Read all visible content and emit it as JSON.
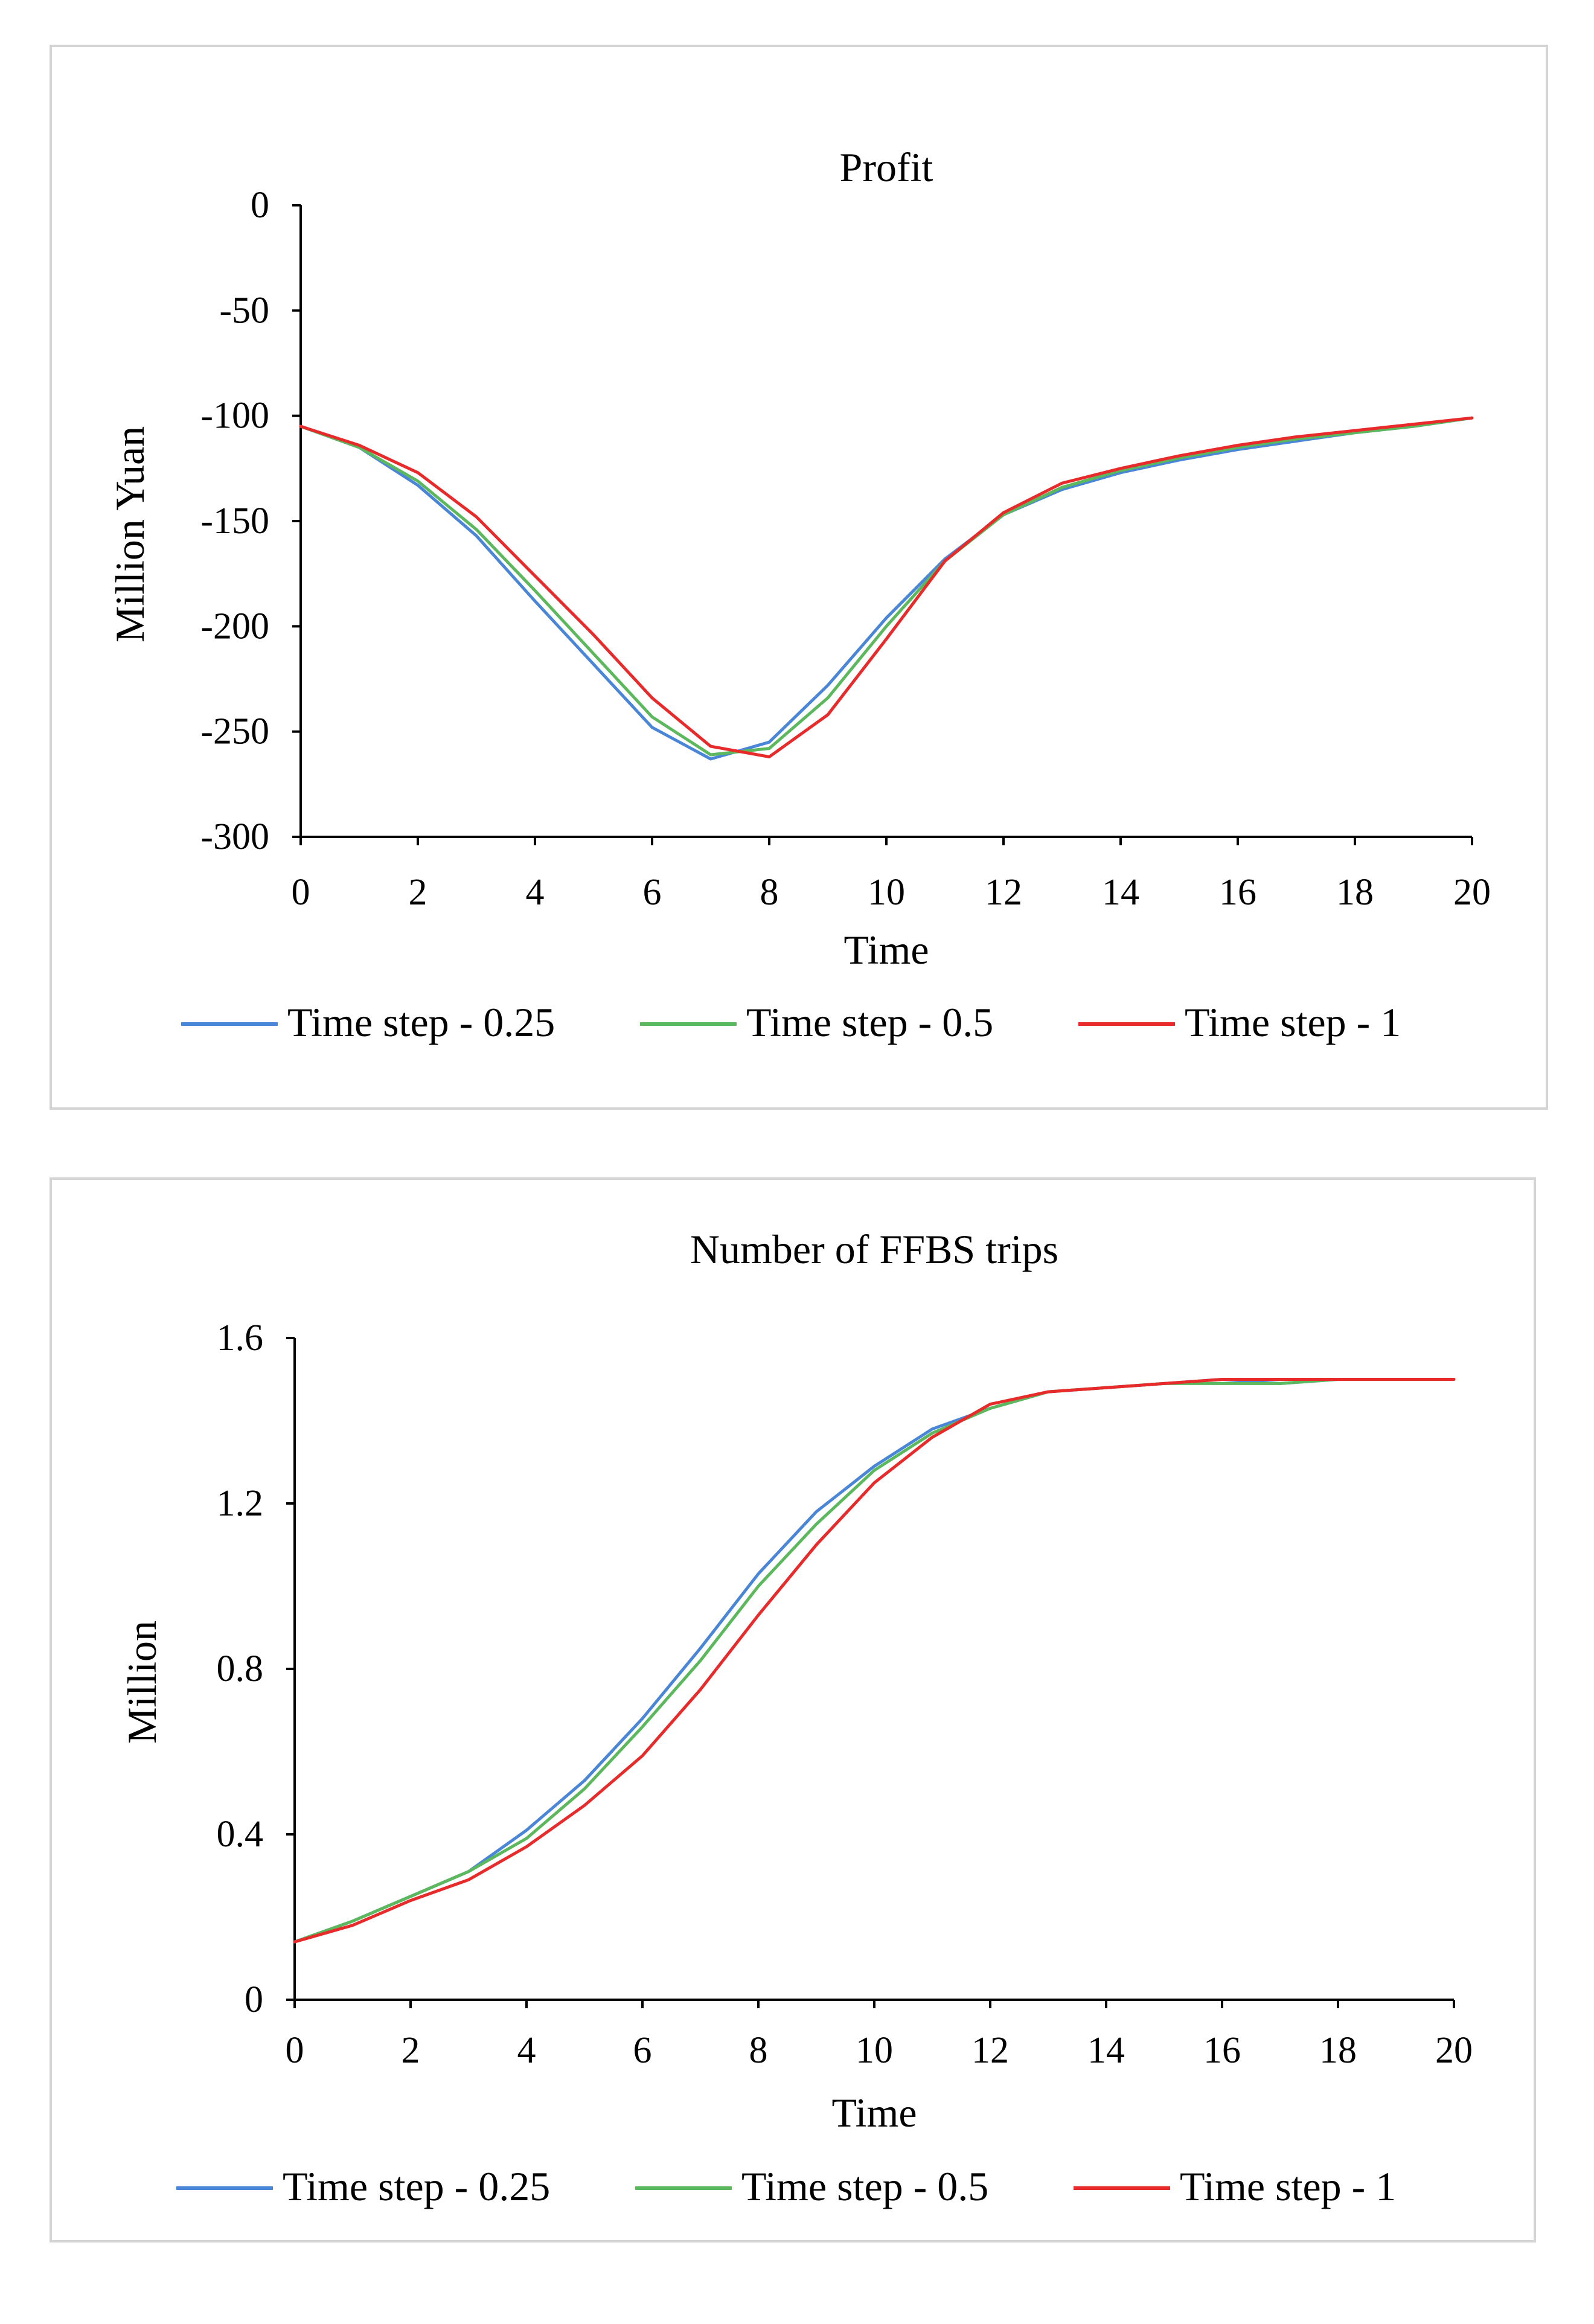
{
  "chart_data": [
    {
      "type": "line",
      "title": "Profit",
      "xlabel": "Time",
      "ylabel": "Million Yuan",
      "xlim": [
        0,
        20
      ],
      "ylim": [
        -300,
        0
      ],
      "x_ticks": [
        0,
        2,
        4,
        6,
        8,
        10,
        12,
        14,
        16,
        18,
        20
      ],
      "y_ticks": [
        0,
        -50,
        -100,
        -150,
        -200,
        -250,
        -300
      ],
      "grid": false,
      "legend_position": "bottom",
      "series": [
        {
          "name": "Time step - 0.25",
          "color": "#4a86d8",
          "x": [
            0,
            1,
            2,
            3,
            4,
            5,
            6,
            7,
            8,
            9,
            10,
            11,
            12,
            13,
            14,
            15,
            16,
            17,
            18,
            19,
            20
          ],
          "values": [
            -105,
            -115,
            -133,
            -157,
            -188,
            -218,
            -248,
            -263,
            -255,
            -228,
            -196,
            -168,
            -147,
            -135,
            -127,
            -121,
            -116,
            -112,
            -108,
            -105,
            -101
          ]
        },
        {
          "name": "Time step - 0.5",
          "color": "#5cb85c",
          "x": [
            0,
            1,
            2,
            3,
            4,
            5,
            6,
            7,
            8,
            9,
            10,
            11,
            12,
            13,
            14,
            15,
            16,
            17,
            18,
            19,
            20
          ],
          "values": [
            -105,
            -115,
            -131,
            -154,
            -183,
            -213,
            -243,
            -261,
            -258,
            -234,
            -200,
            -169,
            -147,
            -134,
            -126,
            -120,
            -115,
            -111,
            -108,
            -105,
            -101
          ]
        },
        {
          "name": "Time step - 1",
          "color": "#e82a2a",
          "x": [
            0,
            1,
            2,
            3,
            4,
            5,
            6,
            7,
            8,
            9,
            10,
            11,
            12,
            13,
            14,
            15,
            16,
            17,
            18,
            19,
            20
          ],
          "values": [
            -105,
            -114,
            -127,
            -148,
            -176,
            -204,
            -234,
            -257,
            -262,
            -242,
            -206,
            -169,
            -146,
            -132,
            -125,
            -119,
            -114,
            -110,
            -107,
            -104,
            -101
          ]
        }
      ]
    },
    {
      "type": "line",
      "title": "Number of FFBS trips",
      "xlabel": "Time",
      "ylabel": "Million",
      "xlim": [
        0,
        20
      ],
      "ylim": [
        0,
        1.6
      ],
      "x_ticks": [
        0,
        2,
        4,
        6,
        8,
        10,
        12,
        14,
        16,
        18,
        20
      ],
      "y_ticks": [
        1.6,
        1.2,
        0.8,
        0.4,
        0
      ],
      "grid": false,
      "legend_position": "bottom",
      "series": [
        {
          "name": "Time step - 0.25",
          "color": "#4a86d8",
          "x": [
            0,
            1,
            2,
            3,
            4,
            5,
            6,
            7,
            8,
            9,
            10,
            11,
            12,
            13,
            14,
            15,
            16,
            17,
            18,
            19,
            20
          ],
          "values": [
            0.14,
            0.19,
            0.25,
            0.31,
            0.41,
            0.53,
            0.68,
            0.85,
            1.03,
            1.18,
            1.29,
            1.38,
            1.43,
            1.47,
            1.48,
            1.49,
            1.5,
            1.49,
            1.5,
            1.5,
            1.5
          ]
        },
        {
          "name": "Time step - 0.5",
          "color": "#5cb85c",
          "x": [
            0,
            1,
            2,
            3,
            4,
            5,
            6,
            7,
            8,
            9,
            10,
            11,
            12,
            13,
            14,
            15,
            16,
            17,
            18,
            19,
            20
          ],
          "values": [
            0.14,
            0.19,
            0.25,
            0.31,
            0.39,
            0.51,
            0.66,
            0.82,
            1.0,
            1.15,
            1.28,
            1.37,
            1.43,
            1.47,
            1.48,
            1.49,
            1.49,
            1.49,
            1.5,
            1.5,
            1.5
          ]
        },
        {
          "name": "Time step - 1",
          "color": "#e82a2a",
          "x": [
            0,
            1,
            2,
            3,
            4,
            5,
            6,
            7,
            8,
            9,
            10,
            11,
            12,
            13,
            14,
            15,
            16,
            17,
            18,
            19,
            20
          ],
          "values": [
            0.14,
            0.18,
            0.24,
            0.29,
            0.37,
            0.47,
            0.59,
            0.75,
            0.93,
            1.1,
            1.25,
            1.36,
            1.44,
            1.47,
            1.48,
            1.49,
            1.5,
            1.5,
            1.5,
            1.5,
            1.5
          ]
        }
      ]
    }
  ]
}
